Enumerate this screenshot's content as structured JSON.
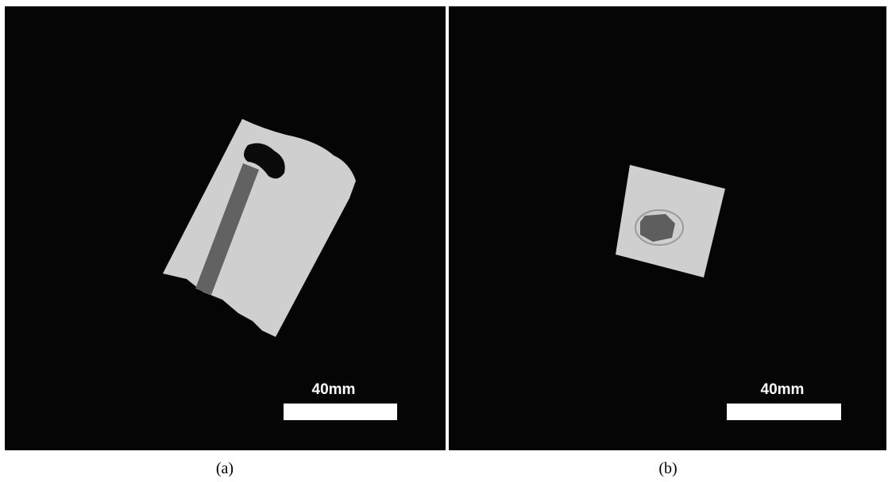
{
  "panels": [
    {
      "scale_label": "40mm",
      "caption": "(a)"
    },
    {
      "scale_label": "40mm",
      "caption": "(b)"
    }
  ]
}
